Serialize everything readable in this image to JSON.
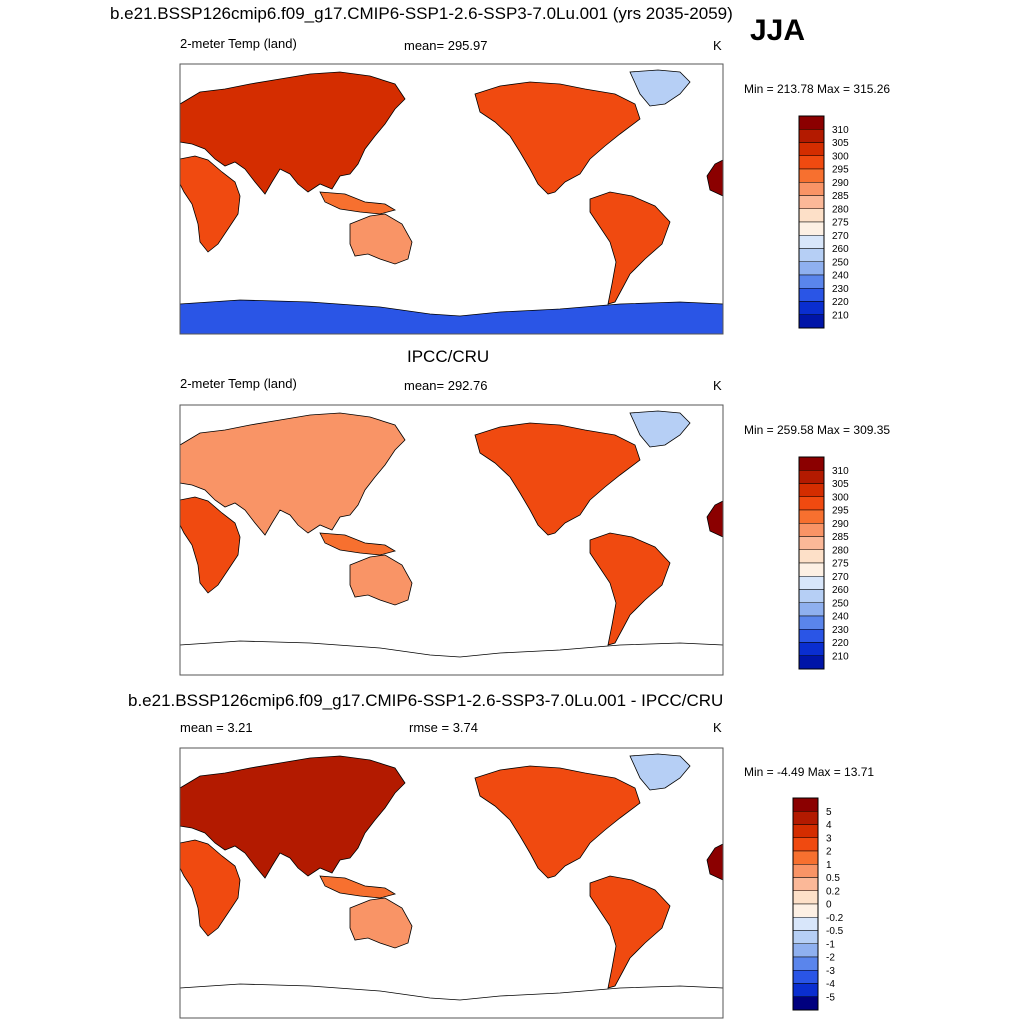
{
  "header": {
    "title": "b.e21.BSSP126cmip6.f09_g17.CMIP6-SSP1-2.6-SSP3-7.0Lu.001 (yrs 2035-2059)",
    "season": "JJA"
  },
  "panel_model": {
    "left_label": "2-meter Temp (land)",
    "center_label": "mean= 295.97",
    "units": "K",
    "minmax": "Min = 213.78 Max = 315.26",
    "colorbar_labels": [
      "310",
      "305",
      "300",
      "295",
      "290",
      "285",
      "280",
      "275",
      "270",
      "260",
      "250",
      "240",
      "230",
      "220",
      "210"
    ]
  },
  "panel_obs": {
    "title": "IPCC/CRU",
    "left_label": "2-meter Temp (land)",
    "center_label": "mean= 292.76",
    "units": "K",
    "minmax": "Min = 259.58 Max = 309.35",
    "colorbar_labels": [
      "310",
      "305",
      "300",
      "295",
      "290",
      "285",
      "280",
      "275",
      "270",
      "260",
      "250",
      "240",
      "230",
      "220",
      "210"
    ]
  },
  "panel_diff": {
    "title": "b.e21.BSSP126cmip6.f09_g17.CMIP6-SSP1-2.6-SSP3-7.0Lu.001 - IPCC/CRU",
    "left_label": "mean =   3.21",
    "center_label": "rmse =   3.74",
    "units": "K",
    "minmax": "Min =  -4.49 Max =  13.71",
    "colorbar_labels": [
      "5",
      "4",
      "3",
      "2",
      "1",
      "0.5",
      "0.2",
      "0",
      "-0.2",
      "-0.5",
      "-1",
      "-2",
      "-3",
      "-4",
      "-5"
    ]
  },
  "colors": {
    "abs_scale": [
      "#8b0000",
      "#b31a00",
      "#d42d00",
      "#f04a10",
      "#f7702f",
      "#f99466",
      "#fbb898",
      "#fde0c8",
      "#fdf0e4",
      "#d8e6fa",
      "#b6cff5",
      "#8fb0ef",
      "#5a85ec",
      "#2a55e6",
      "#0a2ed0",
      "#0015a8",
      "#00007f"
    ],
    "diff_scale": [
      "#8b0000",
      "#b31a00",
      "#d42d00",
      "#f04a10",
      "#f7702f",
      "#f99466",
      "#fbb898",
      "#fde0c8",
      "#fdf0e4",
      "#d8e6fa",
      "#b6cff5",
      "#8fb0ef",
      "#5a85ec",
      "#2a55e6",
      "#0a2ed0",
      "#00007f"
    ]
  },
  "chart_data": [
    {
      "type": "heatmap",
      "title": "b.e21.BSSP126cmip6.f09_g17.CMIP6-SSP1-2.6-SSP3-7.0Lu.001 (yrs 2035-2059)",
      "subtitle": "2-meter Temp (land)",
      "season": "JJA",
      "mean": 295.97,
      "min": 213.78,
      "max": 315.26,
      "units": "K",
      "colorbar_levels": [
        210,
        220,
        230,
        240,
        250,
        260,
        270,
        275,
        280,
        285,
        290,
        295,
        300,
        305,
        310
      ]
    },
    {
      "type": "heatmap",
      "title": "IPCC/CRU",
      "subtitle": "2-meter Temp (land)",
      "mean": 292.76,
      "min": 259.58,
      "max": 309.35,
      "units": "K",
      "colorbar_levels": [
        210,
        220,
        230,
        240,
        250,
        260,
        270,
        275,
        280,
        285,
        290,
        295,
        300,
        305,
        310
      ]
    },
    {
      "type": "heatmap",
      "title": "b.e21.BSSP126cmip6.f09_g17.CMIP6-SSP1-2.6-SSP3-7.0Lu.001 - IPCC/CRU",
      "mean": 3.21,
      "rmse": 3.74,
      "min": -4.49,
      "max": 13.71,
      "units": "K",
      "colorbar_levels": [
        -5,
        -4,
        -3,
        -2,
        -1,
        -0.5,
        -0.2,
        0,
        0.2,
        0.5,
        1,
        2,
        3,
        4,
        5
      ]
    }
  ]
}
